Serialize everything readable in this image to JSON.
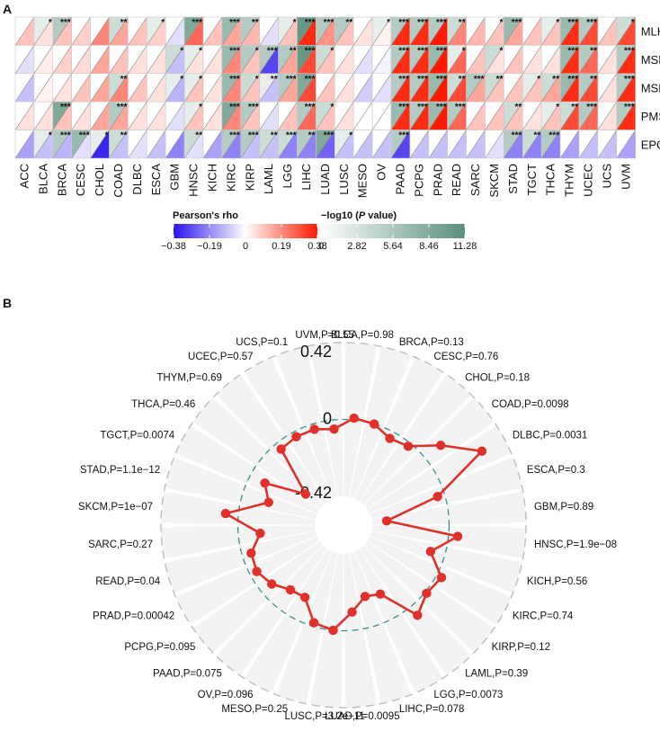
{
  "panel_a_label": "A",
  "panel_b_label": "B",
  "legend": {
    "rho_title": "Pearson's rho",
    "rho_ticks": [
      "−0.38",
      "−0.19",
      "0",
      "0.19",
      "0.38"
    ],
    "p_title_prefix": "−log10 (",
    "p_title_italic": "P",
    "p_title_suffix": " value)",
    "p_ticks": [
      "0",
      "2.82",
      "5.64",
      "8.46",
      "11.28"
    ],
    "colors": {
      "neg": "#3b20f0",
      "zero": "#ffffff",
      "pos": "#ff1a00",
      "p_low": "#ffffff",
      "p_high": "#5a8f7b"
    }
  },
  "chart_data": [
    {
      "type": "heatmap",
      "title": "",
      "description_rows": "genes",
      "rows": [
        "MLH1",
        "MSH2",
        "MSH6",
        "PMS2",
        "EPCAM"
      ],
      "columns": [
        "ACC",
        "BLCA",
        "BRCA",
        "CESC",
        "CHOL",
        "COAD",
        "DLBC",
        "ESCA",
        "GBM",
        "HNSC",
        "KICH",
        "KIRC",
        "KIRP",
        "LAML",
        "LGG",
        "LIHC",
        "LUAD",
        "LUSC",
        "MESO",
        "OV",
        "PAAD",
        "PCPG",
        "PRAD",
        "READ",
        "SARC",
        "SKCM",
        "STAD",
        "TGCT",
        "THCA",
        "THYM",
        "UCEC",
        "UCS",
        "UVM"
      ],
      "rho": [
        [
          0.1,
          0.05,
          0.1,
          0.08,
          0.2,
          0.15,
          0.1,
          0.08,
          -0.05,
          0.25,
          0.1,
          0.15,
          0.12,
          -0.05,
          0.1,
          0.35,
          0.18,
          0.1,
          0.05,
          0.02,
          0.35,
          0.35,
          0.38,
          0.2,
          0.12,
          0.1,
          0.15,
          0.1,
          0.1,
          0.35,
          0.3,
          0.1,
          0.3
        ],
        [
          -0.05,
          0.03,
          0.08,
          0.06,
          0.15,
          0.1,
          0.05,
          0.05,
          -0.1,
          0.05,
          0.05,
          0.2,
          0.1,
          -0.3,
          0.15,
          0.3,
          0.1,
          0.05,
          -0.05,
          -0.02,
          0.35,
          0.35,
          0.38,
          0.25,
          0.1,
          0.05,
          0.1,
          0.05,
          0.05,
          0.35,
          0.25,
          0.05,
          0.35
        ],
        [
          -0.1,
          0.02,
          0.05,
          0.1,
          0.15,
          0.2,
          0.1,
          0.05,
          -0.12,
          0.1,
          0.05,
          0.2,
          0.1,
          -0.1,
          0.15,
          0.3,
          0.1,
          0.05,
          -0.08,
          -0.05,
          0.35,
          0.35,
          0.38,
          0.3,
          0.15,
          0.1,
          0.1,
          0.1,
          0.15,
          0.35,
          0.3,
          0.05,
          0.35
        ],
        [
          0.05,
          0.05,
          0.1,
          0.05,
          0.15,
          0.15,
          0.05,
          0.05,
          -0.05,
          0.1,
          0.05,
          0.2,
          0.1,
          -0.05,
          0.1,
          0.25,
          0.1,
          0.05,
          0.0,
          0.0,
          0.35,
          0.35,
          0.38,
          0.25,
          0.1,
          0.1,
          0.1,
          0.05,
          0.1,
          0.3,
          0.25,
          0.05,
          0.35
        ],
        [
          -0.15,
          -0.1,
          -0.12,
          -0.05,
          -0.35,
          -0.1,
          -0.05,
          -0.1,
          -0.2,
          -0.05,
          -0.15,
          -0.2,
          -0.1,
          -0.1,
          -0.2,
          -0.2,
          -0.25,
          -0.1,
          -0.1,
          -0.1,
          -0.3,
          -0.1,
          -0.1,
          -0.1,
          -0.1,
          -0.05,
          -0.2,
          -0.2,
          -0.2,
          -0.15,
          -0.1,
          -0.1,
          -0.15
        ]
      ],
      "neglog10p": [
        [
          0,
          1,
          3,
          0,
          0,
          2,
          0,
          1,
          0,
          5,
          0,
          4,
          3,
          0,
          1,
          6,
          3,
          3,
          0,
          1,
          3,
          3,
          3,
          2,
          0,
          0,
          4,
          0,
          1,
          4,
          3,
          0,
          2
        ],
        [
          0,
          0,
          0,
          0,
          0,
          0,
          0,
          0,
          2,
          1,
          0,
          4,
          3,
          3,
          3,
          6,
          2,
          0,
          0,
          0,
          3,
          3,
          4,
          1,
          0,
          2,
          0,
          0,
          0,
          4,
          3,
          0,
          3
        ],
        [
          0,
          0,
          0,
          0,
          0,
          2,
          0,
          0,
          1,
          1,
          0,
          4,
          2,
          1,
          3,
          5,
          0,
          0,
          0,
          0,
          3,
          3,
          4,
          2,
          3,
          2,
          0,
          1,
          2,
          4,
          3,
          0,
          3
        ],
        [
          0,
          0,
          5,
          0,
          0,
          3,
          0,
          0,
          0,
          1,
          0,
          5,
          3,
          0,
          0,
          3,
          2,
          0,
          0,
          0,
          4,
          3,
          4,
          3,
          0,
          0,
          2,
          0,
          1,
          2,
          3,
          0,
          3
        ],
        [
          0,
          1,
          3,
          4,
          1,
          2,
          0,
          0,
          0,
          2,
          0,
          3,
          3,
          2,
          2,
          3,
          5,
          1,
          0,
          0,
          3,
          0,
          0,
          0,
          0,
          0,
          3,
          2,
          3,
          0,
          0,
          0,
          0
        ]
      ],
      "stars": [
        [
          "",
          "*",
          "***",
          "",
          "",
          "**",
          "",
          "*",
          "",
          "***",
          "",
          "***",
          "**",
          "",
          "*",
          "***",
          "***",
          "**",
          "",
          "*",
          "***",
          "***",
          "***",
          "**",
          "",
          "*",
          "***",
          "",
          "*",
          "***",
          "***",
          "",
          "*"
        ],
        [
          "",
          "",
          "",
          "",
          "",
          "",
          "",
          "",
          "*",
          "*",
          "",
          "***",
          "*",
          "***",
          "**",
          "***",
          "*",
          "",
          "",
          "",
          "***",
          "***",
          "***",
          "*",
          "",
          "*",
          "",
          "",
          "",
          "***",
          "**",
          "",
          "***"
        ],
        [
          "",
          "",
          "",
          "",
          "",
          "**",
          "",
          "",
          "*",
          "*",
          "",
          "***",
          "*",
          "**",
          "***",
          "***",
          "",
          "",
          "",
          "",
          "***",
          "***",
          "***",
          "**",
          "***",
          "**",
          "",
          "*",
          "**",
          "***",
          "**",
          "",
          "***"
        ],
        [
          "",
          "",
          "***",
          "",
          "",
          "***",
          "",
          "",
          "",
          "*",
          "",
          "***",
          "***",
          "",
          "",
          "***",
          "*",
          "",
          "",
          "",
          "***",
          "***",
          "***",
          "***",
          "",
          "",
          "**",
          "",
          "*",
          "**",
          "***",
          "",
          "***"
        ],
        [
          "",
          "*",
          "***",
          "***",
          "*",
          "**",
          "",
          "",
          "",
          "**",
          "",
          "***",
          "***",
          "**",
          "***",
          "**",
          "***",
          "*",
          "",
          "",
          "***",
          "",
          "",
          "",
          "",
          "",
          "***",
          "**",
          "***",
          "",
          "",
          "",
          ""
        ]
      ],
      "rho_range": [
        -0.38,
        0.38
      ],
      "p_range": [
        0,
        11.28
      ]
    },
    {
      "type": "radar",
      "title": "",
      "r_range": [
        -0.42,
        0.42
      ],
      "r_labels": [
        "0.42",
        "0",
        "-0.42"
      ],
      "categories": [
        "BLCA",
        "BRCA",
        "CESC",
        "CHOL",
        "COAD",
        "DLBC",
        "ESCA",
        "GBM",
        "HNSC",
        "KICH",
        "KIRC",
        "KIRP",
        "LAML",
        "LGG",
        "LIHC",
        "LUAD",
        "LUSC",
        "MESO",
        "OV",
        "PAAD",
        "PCPG",
        "PRAD",
        "READ",
        "SARC",
        "SKCM",
        "STAD",
        "TGCT",
        "THCA",
        "THYM",
        "UCEC",
        "UCS",
        "UVM"
      ],
      "labels": [
        "BLCA,P=0.98",
        "BRCA,P=0.13",
        "CESC,P=0.76",
        "CHOL,P=0.18",
        "COAD,P=0.0098",
        "DLBC,P=0.0031",
        "ESCA,P=0.3",
        "GBM,P=0.89",
        "HNSC,P=1.9e−08",
        "KICH,P=0.56",
        "KIRC,P=0.74",
        "KIRP,P=0.12",
        "LAML,P=0.39",
        "LGG,P=0.0073",
        "LIHC,P=0.078",
        "LUAD,P=0.0095",
        "LUSC,P=3.2e−11",
        "MESO,P=0.25",
        "OV,P=0.096",
        "PAAD,P=0.075",
        "PCPG,P=0.095",
        "PRAD,P=0.00042",
        "READ,P=0.04",
        "SARC,P=0.27",
        "SKCM,P=1e−07",
        "STAD,P=1.1e−12",
        "TGCT,P=0.0074",
        "THCA,P=0.46",
        "THYM,P=0.69",
        "UCEC,P=0.57",
        "UCS,P=0.1",
        "UVM,P=0.55"
      ],
      "values": [
        0.01,
        0.0,
        -0.04,
        -0.02,
        0.11,
        0.28,
        -0.04,
        -0.34,
        0.05,
        -0.08,
        0.03,
        0.01,
        0.06,
        -0.15,
        -0.17,
        -0.1,
        0.0,
        -0.02,
        -0.13,
        -0.12,
        -0.07,
        -0.04,
        -0.05,
        -0.12,
        0.07,
        -0.15,
        -0.09,
        -0.31,
        -0.04,
        -0.03,
        -0.03,
        -0.05
      ]
    }
  ]
}
